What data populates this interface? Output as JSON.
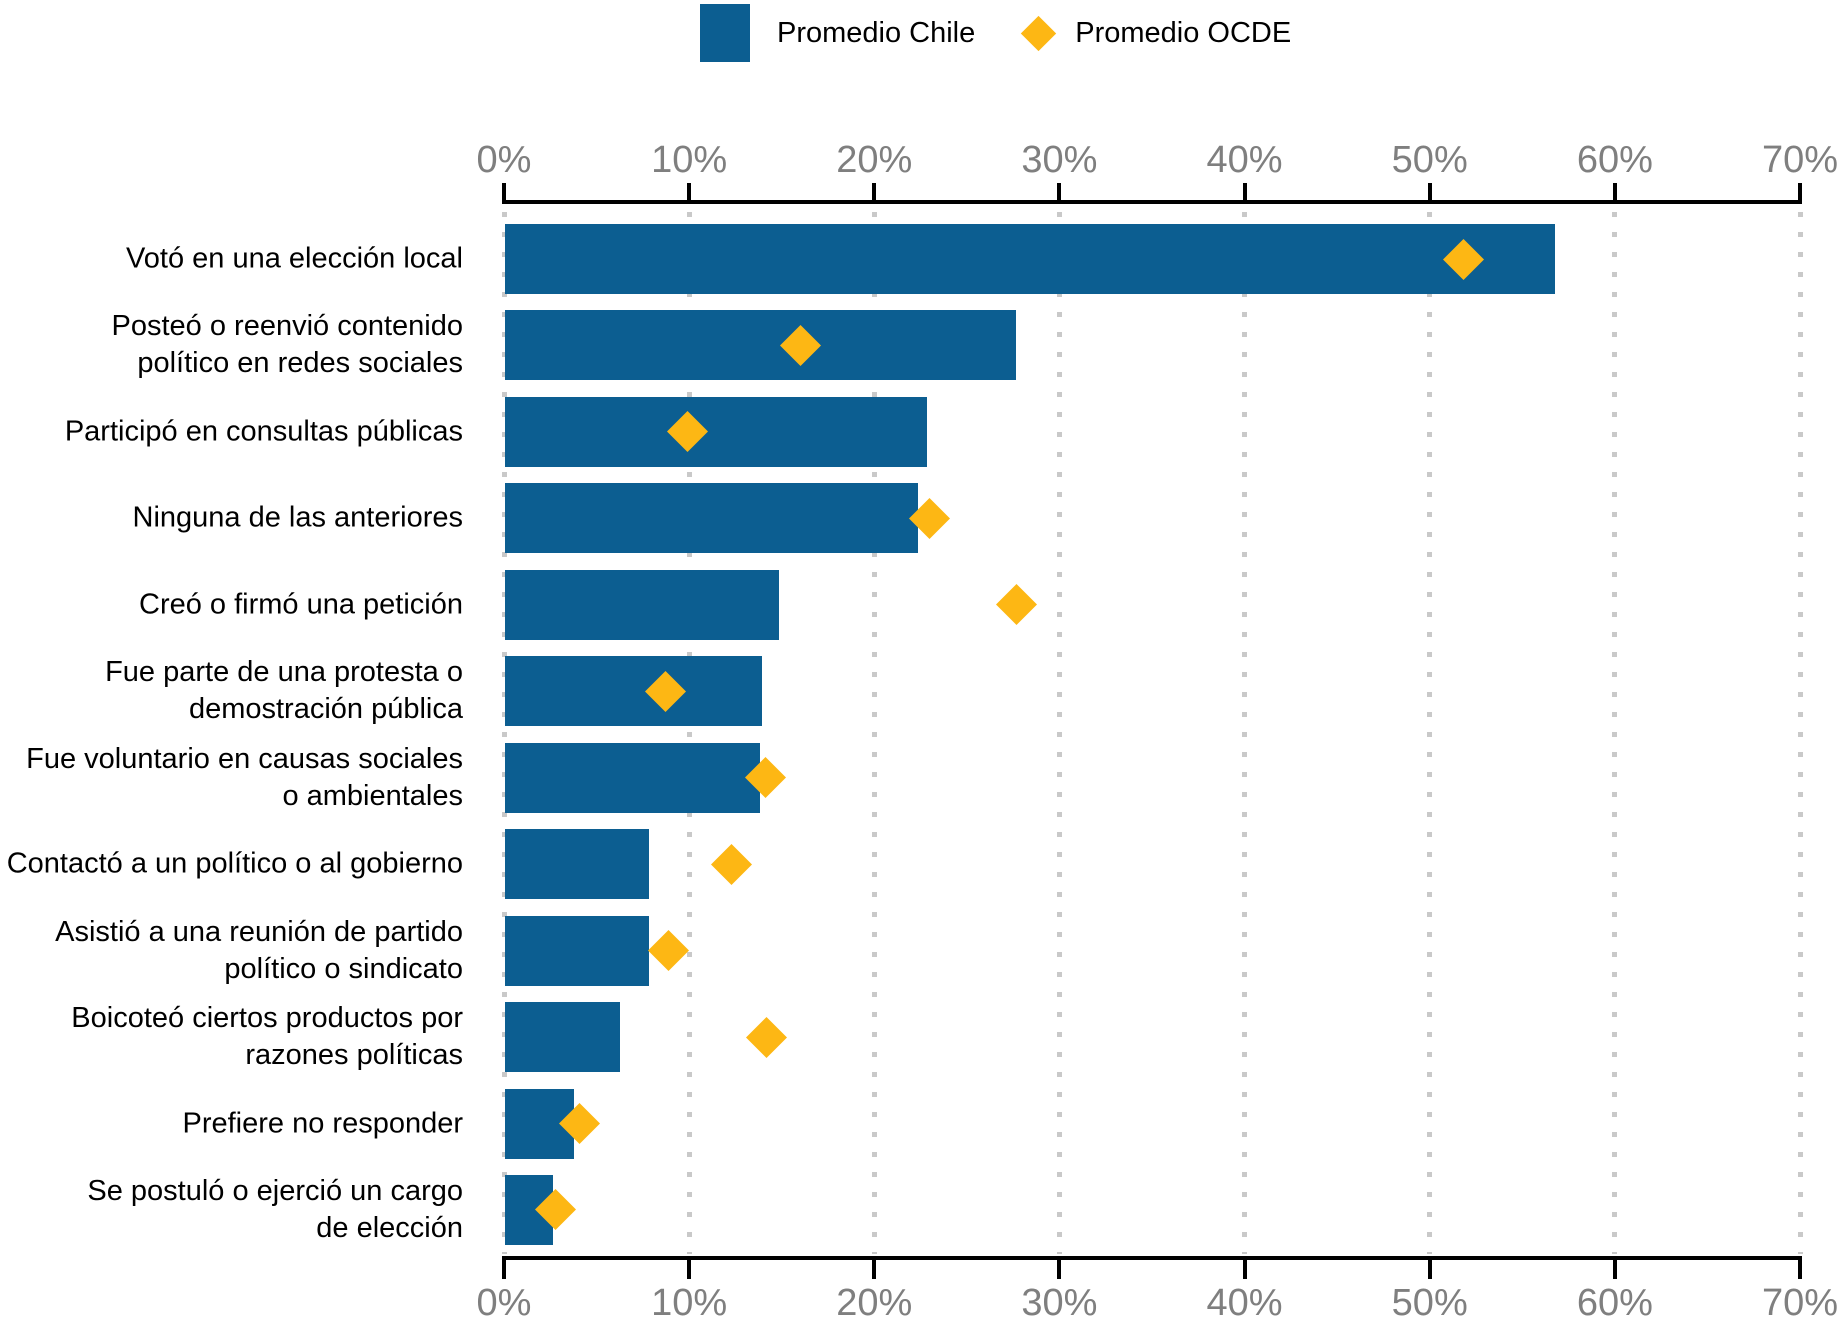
{
  "colors": {
    "bar_blue": "#0C5E91",
    "marker_yellow": "#FDB714",
    "grid_gray": "#C9C9C9",
    "axis_label_gray": "#7F7F7F",
    "axis_line_black": "#000000"
  },
  "legend": {
    "items": [
      {
        "label": "Promedio Chile",
        "marker": "blue-square"
      },
      {
        "label": "Promedio OCDE",
        "marker": "yellow-diamond"
      }
    ],
    "position": "top-center"
  },
  "chart_data": {
    "type": "bar",
    "orientation": "horizontal",
    "title": "",
    "xlabel": "",
    "ylabel": "",
    "x_axis": {
      "min": 0,
      "max": 70,
      "tick_step": 10,
      "ticks": [
        0,
        10,
        20,
        30,
        40,
        50,
        60,
        70
      ],
      "tick_labels": [
        "0%",
        "10%",
        "20%",
        "30%",
        "40%",
        "50%",
        "60%",
        "70%"
      ],
      "unit": "percent",
      "axis_position": "top and bottom",
      "grid": "dotted vertical gridlines at each tick"
    },
    "categories": [
      "Votó en una elección local",
      "Posteó o reenvió contenido\npolítico en redes sociales",
      "Participó en consultas públicas",
      "Ninguna de las anteriores",
      "Creó o firmó una petición",
      "Fue parte de una protesta o\ndemostración pública",
      "Fue voluntario en causas sociales\no ambientales",
      "Contactó a un político o al gobierno",
      "Asistió a una reunión de partido\npolítico o sindicato",
      "Boicoteó ciertos productos por\nrazones políticas",
      "Prefiere no responder",
      "Se postuló o ejerció un cargo\nde elección"
    ],
    "series": [
      {
        "name": "Promedio Chile",
        "render": "bar",
        "color": "#0C5E91",
        "values": [
          56.7,
          27.6,
          22.8,
          22.3,
          14.8,
          13.9,
          13.8,
          7.8,
          7.8,
          6.2,
          3.7,
          2.6
        ]
      },
      {
        "name": "Promedio OCDE",
        "render": "scatter",
        "marker": "diamond",
        "color": "#FDB714",
        "values": [
          51.8,
          16.0,
          9.9,
          23.0,
          27.7,
          8.7,
          14.1,
          12.3,
          8.9,
          14.2,
          4.1,
          2.8
        ]
      }
    ],
    "legend_position": "top center"
  }
}
